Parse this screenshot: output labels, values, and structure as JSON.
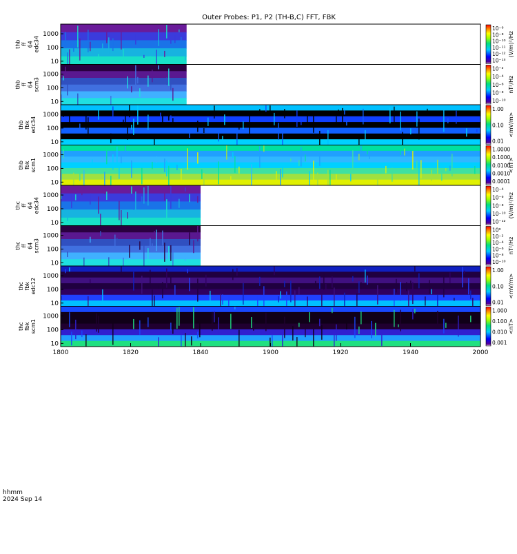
{
  "chart_data": {
    "type": "heatmap",
    "title": "Outer Probes: P1, P2 (TH-B,C) FFT, FBK",
    "x_axis": {
      "range": [
        1800,
        2000
      ],
      "ticks": [
        "1800",
        "1820",
        "1840",
        "1900",
        "1920",
        "1940",
        "2000"
      ],
      "tick_values": [
        0,
        20,
        40,
        60,
        80,
        100,
        120
      ]
    },
    "footer": {
      "line1": "hhmm",
      "line2": "2024 Sep 14"
    },
    "panels": [
      {
        "id": "p1",
        "ylabel": [
          "thb",
          "ff",
          "64",
          "edc34"
        ],
        "yticks": [
          "1000",
          "100",
          "10"
        ],
        "cbar_label": "(V/m)²/Hz",
        "cbar_ticks": [
          "10⁻⁹",
          "10⁻⁸",
          "10⁻¹⁰",
          "10⁻¹¹",
          "10⁻¹²",
          "10⁻¹³"
        ],
        "data_end_minute": 36,
        "style": "fft_e"
      },
      {
        "id": "p2",
        "ylabel": [
          "thb",
          "ff",
          "64",
          "scm3"
        ],
        "yticks": [
          "1000",
          "100",
          "10"
        ],
        "cbar_label": "nT²/Hz",
        "cbar_ticks": [
          "10⁻²",
          "10⁻⁴",
          "10⁻⁶",
          "10⁻⁸",
          "10⁻¹⁰"
        ],
        "data_end_minute": 36,
        "style": "fft_b"
      },
      {
        "id": "p3",
        "ylabel": [
          "thb",
          "fbk",
          "edc34"
        ],
        "yticks": [
          "1000",
          "100",
          "10"
        ],
        "cbar_label": "<mV/m>",
        "cbar_ticks": [
          "1.00",
          "0.10",
          "0.01"
        ],
        "data_end_minute": 120,
        "style": "fbk_e"
      },
      {
        "id": "p4",
        "ylabel": [
          "thb",
          "fbk",
          "scm1"
        ],
        "yticks": [
          "1000",
          "100",
          "10"
        ],
        "cbar_label": "<nT>",
        "cbar_ticks": [
          "1.0000",
          "0.1000",
          "0.0100",
          "0.0010",
          "0.0001"
        ],
        "data_end_minute": 120,
        "style": "fbk_b"
      },
      {
        "id": "p5",
        "ylabel": [
          "thc",
          "ff",
          "64",
          "edc34"
        ],
        "yticks": [
          "1000",
          "100",
          "10"
        ],
        "cbar_label": "(V/m)²/Hz",
        "cbar_ticks": [
          "10⁻⁴",
          "10⁻⁶",
          "10⁻⁸",
          "10⁻¹⁰",
          "10⁻¹²"
        ],
        "data_end_minute": 40,
        "style": "fft_e"
      },
      {
        "id": "p6",
        "ylabel": [
          "thc",
          "ff",
          "64",
          "scm3"
        ],
        "yticks": [
          "1000",
          "100",
          "10"
        ],
        "cbar_label": "nT²/Hz",
        "cbar_ticks": [
          "10⁰",
          "10⁻²",
          "10⁻⁴",
          "10⁻⁶",
          "10⁻⁸",
          "10⁻¹⁰"
        ],
        "data_end_minute": 40,
        "style": "fft_b"
      },
      {
        "id": "p7",
        "ylabel": [
          "thc",
          "fbk",
          "edc12"
        ],
        "yticks": [
          "1000",
          "100",
          "10"
        ],
        "cbar_label": "<mV/m>",
        "cbar_ticks": [
          "1.00",
          "0.10",
          "0.01"
        ],
        "data_end_minute": 120,
        "style": "fbk_e2"
      },
      {
        "id": "p8",
        "ylabel": [
          "thc",
          "fbk",
          "scm1"
        ],
        "yticks": [
          "1000",
          "100",
          "10"
        ],
        "cbar_label": "<nT>",
        "cbar_ticks": [
          "1.000",
          "0.100",
          "0.010",
          "0.001"
        ],
        "data_end_minute": 120,
        "style": "fbk_b2"
      }
    ]
  }
}
